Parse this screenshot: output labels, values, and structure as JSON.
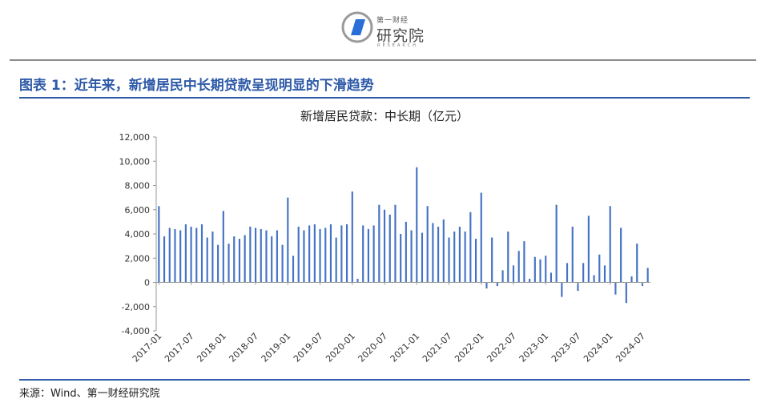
{
  "logo": {
    "small_text": "第一财经",
    "big_text": "研究院",
    "english_text": "RESEARCH",
    "icon": "first-financial-logo-icon",
    "colors": {
      "blue": "#2a6fd8",
      "gray": "#9a9a9a"
    }
  },
  "figure_title": "图表 1：近年来，新增居民中长期贷款呈现明显的下滑趋势",
  "source": "来源：Wind、第一财经研究院",
  "colors": {
    "accent": "#2e5aa8",
    "bar": "#4472c4",
    "rule": "#8c8c8c"
  },
  "chart_data": {
    "type": "bar",
    "title": "新增居民贷款：中长期（亿元）",
    "ylim": [
      -4000,
      12000
    ],
    "yticks": [
      -4000,
      -2000,
      0,
      2000,
      4000,
      6000,
      8000,
      10000,
      12000
    ],
    "ytick_labels": [
      "-4,000",
      "-2,000",
      "0",
      "2,000",
      "4,000",
      "6,000",
      "8,000",
      "10,000",
      "12,000"
    ],
    "xtick_labels": [
      "2017-01",
      "2017-07",
      "2018-01",
      "2018-07",
      "2019-01",
      "2019-07",
      "2020-01",
      "2020-07",
      "2021-01",
      "2021-07",
      "2022-01",
      "2022-07",
      "2023-01",
      "2023-07",
      "2024-01",
      "2024-07"
    ],
    "grid": false,
    "legend": "none",
    "categories": [
      "2017-01",
      "2017-02",
      "2017-03",
      "2017-04",
      "2017-05",
      "2017-06",
      "2017-07",
      "2017-08",
      "2017-09",
      "2017-10",
      "2017-11",
      "2017-12",
      "2018-01",
      "2018-02",
      "2018-03",
      "2018-04",
      "2018-05",
      "2018-06",
      "2018-07",
      "2018-08",
      "2018-09",
      "2018-10",
      "2018-11",
      "2018-12",
      "2019-01",
      "2019-02",
      "2019-03",
      "2019-04",
      "2019-05",
      "2019-06",
      "2019-07",
      "2019-08",
      "2019-09",
      "2019-10",
      "2019-11",
      "2019-12",
      "2020-01",
      "2020-02",
      "2020-03",
      "2020-04",
      "2020-05",
      "2020-06",
      "2020-07",
      "2020-08",
      "2020-09",
      "2020-10",
      "2020-11",
      "2020-12",
      "2021-01",
      "2021-02",
      "2021-03",
      "2021-04",
      "2021-05",
      "2021-06",
      "2021-07",
      "2021-08",
      "2021-09",
      "2021-10",
      "2021-11",
      "2021-12",
      "2022-01",
      "2022-02",
      "2022-03",
      "2022-04",
      "2022-05",
      "2022-06",
      "2022-07",
      "2022-08",
      "2022-09",
      "2022-10",
      "2022-11",
      "2022-12",
      "2023-01",
      "2023-02",
      "2023-03",
      "2023-04",
      "2023-05",
      "2023-06",
      "2023-07",
      "2023-08",
      "2023-09",
      "2023-10",
      "2023-11",
      "2023-12",
      "2024-01",
      "2024-02",
      "2024-03",
      "2024-04",
      "2024-05",
      "2024-06",
      "2024-07",
      "2024-08"
    ],
    "values": [
      6300,
      3800,
      4500,
      4400,
      4300,
      4800,
      4600,
      4500,
      4800,
      3700,
      4200,
      3100,
      5900,
      3200,
      3800,
      3600,
      3900,
      4600,
      4500,
      4400,
      4300,
      3800,
      4300,
      3100,
      7000,
      2200,
      4600,
      4300,
      4700,
      4800,
      4400,
      4500,
      4800,
      3700,
      4700,
      4800,
      7500,
      300,
      4700,
      4400,
      4700,
      6400,
      6000,
      5600,
      6400,
      4000,
      5000,
      4300,
      9500,
      4100,
      6300,
      4900,
      4600,
      5200,
      3700,
      4200,
      4600,
      4200,
      5800,
      3600,
      7400,
      -500,
      3700,
      -300,
      1000,
      4200,
      1400,
      2600,
      3400,
      300,
      2100,
      1900,
      2200,
      800,
      6400,
      -1200,
      1600,
      4600,
      -700,
      1600,
      5500,
      600,
      2300,
      1400,
      6300,
      -1000,
      4500,
      -1700,
      500,
      3200,
      -300,
      1200
    ]
  }
}
